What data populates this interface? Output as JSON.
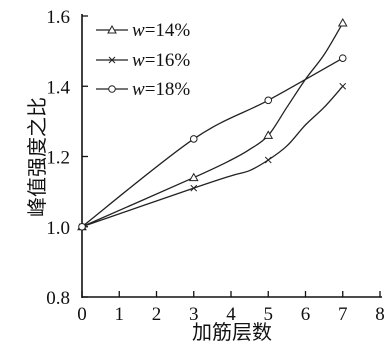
{
  "chart_data": {
    "type": "line",
    "xlabel": "加筋层数",
    "ylabel": "峰值强度之比",
    "xlim": [
      0,
      8
    ],
    "ylim": [
      0.8,
      1.6
    ],
    "x_ticks": [
      0,
      1,
      2,
      3,
      4,
      5,
      6,
      7,
      8
    ],
    "y_ticks": [
      0.8,
      1.0,
      1.2,
      1.4,
      1.6
    ],
    "y_tick_labels": [
      "0.8",
      "1.0",
      "1.2",
      "1.4",
      "1.6"
    ],
    "legend_position": "top-left",
    "grid": false,
    "series": [
      {
        "name": "w=14%",
        "legend_var": "w",
        "legend_value": "=14%",
        "marker": "triangle",
        "x": [
          0,
          3,
          5,
          7
        ],
        "y": [
          1.0,
          1.14,
          1.26,
          1.58
        ],
        "curve": [
          [
            0,
            1.0
          ],
          [
            3,
            1.14
          ],
          [
            4,
            1.19
          ],
          [
            4.5,
            1.22
          ],
          [
            5,
            1.26
          ],
          [
            5.5,
            1.34
          ],
          [
            6,
            1.42
          ],
          [
            6.5,
            1.49
          ],
          [
            7,
            1.58
          ]
        ]
      },
      {
        "name": "w=16%",
        "legend_var": "w",
        "legend_value": "=16%",
        "marker": "x",
        "x": [
          0,
          3,
          5,
          7
        ],
        "y": [
          1.0,
          1.11,
          1.19,
          1.4
        ],
        "curve": [
          [
            0,
            1.0
          ],
          [
            3,
            1.11
          ],
          [
            4,
            1.145
          ],
          [
            4.5,
            1.16
          ],
          [
            5,
            1.19
          ],
          [
            5.5,
            1.23
          ],
          [
            6,
            1.29
          ],
          [
            6.5,
            1.34
          ],
          [
            7,
            1.4
          ]
        ]
      },
      {
        "name": "w=18%",
        "legend_var": "w",
        "legend_value": "=18%",
        "marker": "circle",
        "x": [
          0,
          3,
          5,
          7
        ],
        "y": [
          1.0,
          1.25,
          1.36,
          1.48
        ],
        "curve": [
          [
            0,
            1.0
          ],
          [
            3,
            1.25
          ],
          [
            5,
            1.36
          ],
          [
            7,
            1.48
          ]
        ]
      }
    ]
  }
}
